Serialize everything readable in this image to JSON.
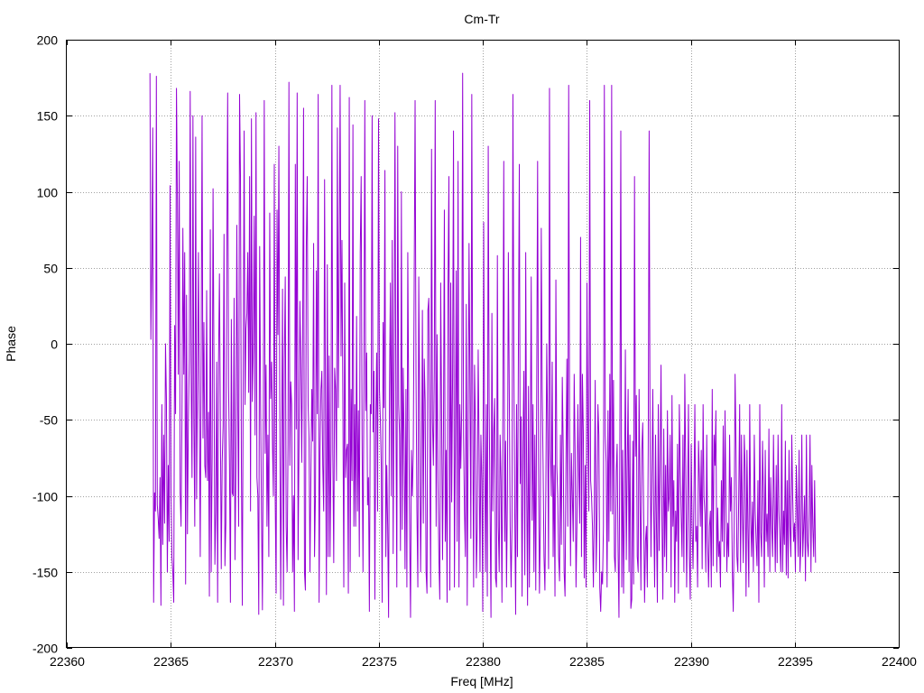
{
  "chart_data": {
    "type": "line",
    "title": "Cm-Tr",
    "xlabel": "Freq [MHz]",
    "ylabel": "Phase",
    "xlim": [
      22360,
      22400
    ],
    "ylim": [
      -200,
      200
    ],
    "xticks": [
      22360,
      22365,
      22370,
      22375,
      22380,
      22385,
      22390,
      22395,
      22400
    ],
    "yticks": [
      -200,
      -150,
      -100,
      -50,
      0,
      50,
      100,
      150,
      200
    ],
    "grid": true,
    "legend": "none",
    "series": [
      {
        "color": "#9400d3",
        "x_start": 22364.0,
        "x_end": 22396.0,
        "x_step": 0.03125,
        "values": [
          178,
          3,
          55,
          142,
          -170,
          -98,
          -110,
          176,
          -106,
          -115,
          -128,
          -88,
          -172,
          -40,
          -132,
          -60,
          -118,
          0,
          -36,
          -150,
          -80,
          -130,
          104,
          -95,
          -140,
          -150,
          -170,
          12,
          -46,
          168,
          95,
          -20,
          120,
          -98,
          -120,
          -48,
          76,
          -20,
          60,
          -158,
          32,
          -125,
          -52,
          -10,
          166,
          -20,
          -88,
          150,
          -50,
          -120,
          136,
          -102,
          -25,
          60,
          -44,
          -140,
          -2,
          150,
          -62,
          14,
          -80,
          -88,
          35,
          -90,
          -45,
          -166,
          75,
          -150,
          -75,
          102,
          -15,
          -145,
          -110,
          -12,
          -170,
          -12,
          46,
          -50,
          -148,
          -78,
          -54,
          72,
          -146,
          -118,
          52,
          165,
          -28,
          -80,
          -170,
          16,
          -98,
          -100,
          30,
          -142,
          -80,
          78,
          -40,
          -120,
          164,
          110,
          -80,
          -172,
          -20,
          140,
          -40,
          10,
          20,
          60,
          -32,
          110,
          -110,
          148,
          -38,
          -4,
          84,
          -60,
          152,
          -88,
          -100,
          -178,
          64,
          -40,
          -112,
          -175,
          -45,
          160,
          -72,
          -14,
          -120,
          -60,
          -140,
          86,
          -36,
          -12,
          -66,
          -100,
          118,
          -102,
          -164,
          88,
          6,
          130,
          -40,
          -168,
          -70,
          36,
          -172,
          -10,
          44,
          -120,
          -150,
          -66,
          172,
          -80,
          -25,
          -40,
          -150,
          -100,
          -176,
          118,
          -56,
          165,
          -142,
          -66,
          28,
          -10,
          -78,
          4,
          155,
          -150,
          -162,
          64,
          110,
          -40,
          -62,
          -150,
          -88,
          -30,
          -64,
          66,
          -140,
          -100,
          48,
          -46,
          164,
          -170,
          -72,
          -30,
          -18,
          -80,
          -110,
          108,
          -46,
          -165,
          52,
          -140,
          -8,
          -140,
          -70,
          170,
          -72,
          -144,
          -16,
          -30,
          -90,
          142,
          -42,
          56,
          170,
          -8,
          68,
          -38,
          -160,
          40,
          -88,
          -70,
          -66,
          -164,
          162,
          -150,
          -30,
          -90,
          144,
          -120,
          -40,
          -120,
          18,
          -110,
          -44,
          -140,
          60,
          110,
          -60,
          -150,
          -28,
          160,
          -44,
          -6,
          -106,
          -88,
          -176,
          -40,
          -46,
          150,
          -58,
          -18,
          -168,
          -50,
          -6,
          -110,
          148,
          -30,
          -50,
          -80,
          -170,
          14,
          -42,
          114,
          -140,
          -80,
          -120,
          -180,
          -30,
          40,
          -100,
          68,
          -138,
          -8,
          152,
          -40,
          -160,
          130,
          -40,
          -60,
          -136,
          100,
          -122,
          -16,
          -66,
          -148,
          -30,
          -160,
          60,
          -40,
          -122,
          -180,
          -70,
          -100,
          -70,
          40,
          160,
          -20,
          -110,
          -160,
          44,
          -40,
          -150,
          -90,
          22,
          -118,
          -10,
          -38,
          -150,
          -164,
          22,
          30,
          -70,
          -160,
          128,
          -50,
          -80,
          -18,
          160,
          -120,
          6,
          -90,
          -140,
          -168,
          40,
          -46,
          -142,
          -60,
          88,
          -130,
          -70,
          -170,
          38,
          110,
          -162,
          40,
          -104,
          -22,
          140,
          -160,
          -66,
          48,
          -130,
          120,
          -160,
          -40,
          -82,
          -42,
          178,
          -60,
          -110,
          -140,
          26,
          -172,
          -60,
          66,
          -30,
          -128,
          164,
          -40,
          -160,
          -14,
          -54,
          -154,
          -120,
          -4,
          -70,
          -150,
          -60,
          -90,
          -176,
          80,
          -60,
          -150,
          -40,
          -166,
          130,
          -40,
          -110,
          -180,
          20,
          -110,
          -60,
          -36,
          -154,
          -160,
          58,
          -120,
          -150,
          -60,
          -90,
          -170,
          -40,
          120,
          -130,
          -64,
          -160,
          -98,
          60,
          -30,
          -120,
          -160,
          -120,
          164,
          -8,
          -110,
          -178,
          -40,
          -140,
          -4,
          118,
          -92,
          -48,
          -166,
          -66,
          -18,
          -152,
          60,
          -88,
          -172,
          -28,
          -160,
          -70,
          44,
          -116,
          -40,
          -150,
          -60,
          -162,
          -30,
          120,
          -78,
          -164,
          -120,
          76,
          -30,
          -80,
          -140,
          -162,
          -96,
          0,
          -60,
          -148,
          168,
          -70,
          -100,
          -12,
          -140,
          -80,
          -166,
          42,
          -80,
          -100,
          -140,
          -156,
          -60,
          -132,
          -22,
          -68,
          -150,
          -166,
          -80,
          -10,
          -120,
          170,
          -60,
          -146,
          -72,
          -100,
          -130,
          -20,
          -70,
          -160,
          -120,
          -40,
          -82,
          -118,
          70,
          -140,
          -20,
          -58,
          -154,
          -80,
          -160,
          40,
          -58,
          -110,
          160,
          -90,
          -100,
          -120,
          -160,
          -110,
          -24,
          -150,
          -112,
          -40,
          -60,
          -160,
          -176,
          -150,
          -158,
          -120,
          170,
          -60,
          -78,
          -160,
          -44,
          -130,
          -20,
          -110,
          170,
          -112,
          -24,
          -140,
          -150,
          -84,
          -66,
          -136,
          -180,
          -58,
          140,
          -160,
          -70,
          -164,
          -100,
          -4,
          -142,
          -82,
          -30,
          -150,
          -60,
          -174,
          -168,
          -64,
          -158,
          110,
          -74,
          -34,
          -140,
          -150,
          -30,
          -100,
          -162,
          -70,
          -52,
          -110,
          -170,
          -130,
          -120,
          -160,
          -70,
          140,
          -60,
          -140,
          -90,
          -30,
          -110,
          -160,
          -60,
          -120,
          -170,
          -40,
          -136,
          -80,
          -14,
          -116,
          -168,
          -56,
          -140,
          -80,
          -150,
          -44,
          -110,
          -100,
          -60,
          -160,
          -34,
          -120,
          -90,
          -170,
          -110,
          -130,
          -66,
          -164,
          -40,
          -80,
          -112,
          -140,
          -60,
          -150,
          -20,
          -82,
          -160,
          -110,
          -40,
          -140,
          -168,
          -66,
          -120,
          -148,
          -100,
          -40,
          -130,
          -120,
          -160,
          -64,
          -88,
          -120,
          -70,
          -148,
          -40,
          -100,
          -112,
          -150,
          -60,
          -130,
          -160,
          -120,
          -110,
          -160,
          -30,
          -146,
          -60,
          -80,
          -44,
          -150,
          -108,
          -140,
          -130,
          -160,
          -90,
          -130,
          -54,
          -140,
          -44,
          -100,
          -150,
          -118,
          -140,
          -60,
          -110,
          -88,
          -150,
          -176,
          -120,
          -20,
          -70,
          -140,
          -150,
          -100,
          -40,
          -150,
          -60,
          -112,
          -144,
          -60,
          -82,
          -166,
          -70,
          -120,
          -160,
          -40,
          -112,
          -140,
          -104,
          -150,
          -60,
          -110,
          -130,
          -146,
          -90,
          -170,
          -40,
          -124,
          -140,
          -64,
          -100,
          -160,
          -70,
          -130,
          -112,
          -140,
          -56,
          -150,
          -88,
          -120,
          -140,
          -60,
          -110,
          -150,
          -80,
          -144,
          -60,
          -110,
          -130,
          -150,
          -40,
          -150,
          -110,
          -132,
          -64,
          -152,
          -90,
          -154,
          -70,
          -120,
          -140,
          -60,
          -100,
          -130,
          -118,
          -150,
          -80,
          -110,
          -140,
          -70,
          -150,
          -130,
          -60,
          -140,
          -120,
          -100,
          -156,
          -60,
          -130,
          -140,
          -110,
          -60,
          -150,
          -80,
          -120,
          -140,
          -90,
          -144
        ]
      }
    ]
  }
}
